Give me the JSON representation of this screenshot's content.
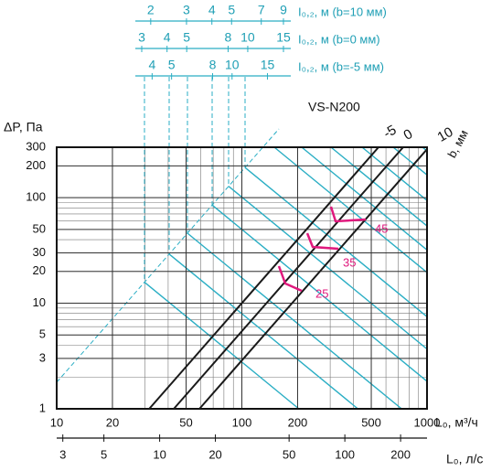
{
  "chart_data": {
    "type": "line",
    "title": "VS-N200",
    "ylabel": "ΔP, Па",
    "xlabel": "L₀, м³/ч",
    "x2label": "L₀, л/с",
    "xlog": true,
    "ylog": true,
    "grid": true,
    "xlim": [
      10,
      1000
    ],
    "ylim": [
      1,
      300
    ],
    "xticks": [
      10,
      20,
      50,
      100,
      200,
      500,
      1000
    ],
    "yticks": [
      1,
      3,
      5,
      10,
      20,
      30,
      50,
      100,
      200,
      300
    ],
    "x2lim": [
      2.78,
      277.8
    ],
    "x2ticks": [
      3,
      5,
      10,
      20,
      50,
      100,
      200
    ],
    "series_label": "b, мм",
    "series": [
      {
        "name": "-5",
        "color": "#1a1a1a",
        "x": [
          31.6,
          547
        ],
        "values": [
          1,
          300
        ]
      },
      {
        "name": "0",
        "color": "#1a1a1a",
        "x": [
          42.9,
          743
        ],
        "values": [
          1,
          300
        ]
      },
      {
        "name": "10",
        "color": "#1a1a1a",
        "x": [
          59,
          1000
        ],
        "values": [
          1,
          287
        ]
      }
    ],
    "annotations": [
      {
        "text": "25",
        "color": "#e0197d"
      },
      {
        "text": "35",
        "color": "#e0197d"
      },
      {
        "text": "45",
        "color": "#e0197d"
      }
    ],
    "top_scales": [
      {
        "label": "I₀,₂, м (b=10 мм)",
        "xlim": [
          1.68,
          9.78
        ],
        "ticks": [
          2,
          3,
          4,
          5,
          7,
          9
        ]
      },
      {
        "label": "I₀,₂, м (b=0 мм)",
        "xlim": [
          2.79,
          16.3
        ],
        "ticks": [
          3,
          4,
          5,
          8,
          10,
          15
        ]
      },
      {
        "label": "I₀,₂, м (b=-5 мм)",
        "xlim": [
          3.3,
          19.6
        ],
        "ticks": [
          4,
          5,
          8,
          10,
          15
        ]
      }
    ]
  }
}
